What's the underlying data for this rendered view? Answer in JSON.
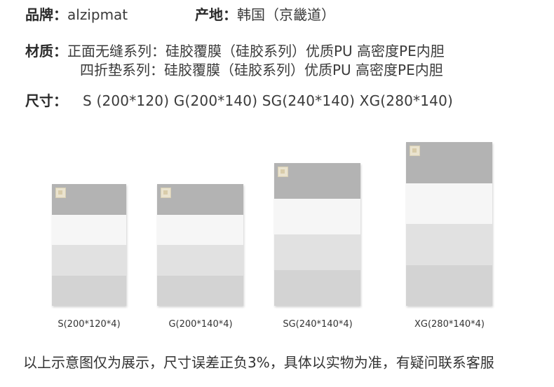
{
  "brand": {
    "label": "品牌：",
    "value": "alzipmat"
  },
  "origin": {
    "label": "产地：",
    "value": "韩国（京畿道）"
  },
  "material": {
    "label": "材质：",
    "line1": "正面无缝系列：硅胶覆膜（硅胶系列）优质PU 高密度PE内胆",
    "line2": "四折垫系列：硅胶覆膜（硅胶系列）优质PU 高密度PE内胆"
  },
  "size": {
    "label": "尺寸：",
    "value": "S (200*120)   G(200*140) SG(240*140) XG(280*140)"
  },
  "mats": [
    {
      "caption": "S(200*120*4)"
    },
    {
      "caption": "G(200*140*4)"
    },
    {
      "caption": "SG(240*140*4)"
    },
    {
      "caption": "XG(280*140*4)"
    }
  ],
  "footer": "以上示意图仅为展示，尺寸误差正负3%，具体以实物为准，有疑问联系客服"
}
